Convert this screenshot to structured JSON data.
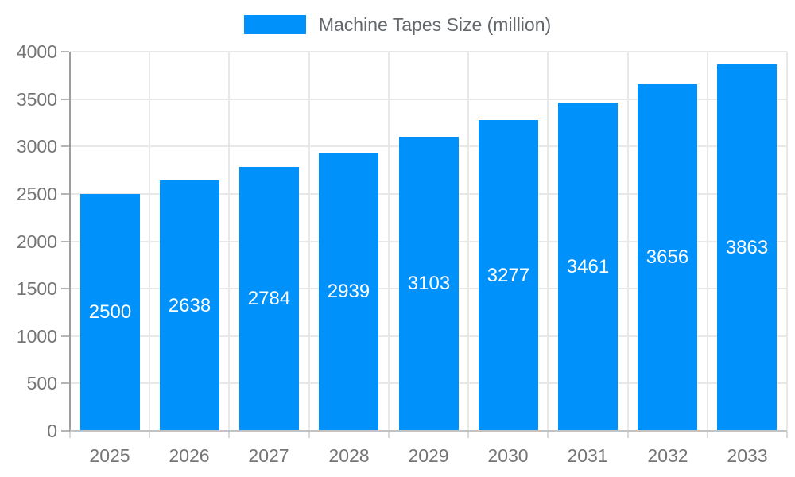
{
  "chart_data": {
    "type": "bar",
    "title": "Machine Tapes Size (million)",
    "legend_label": "Machine Tapes Size (million)",
    "legend_position": "top-center",
    "categories": [
      "2025",
      "2026",
      "2027",
      "2028",
      "2029",
      "2030",
      "2031",
      "2032",
      "2033"
    ],
    "series": [
      {
        "name": "Machine Tapes Size (million)",
        "values": [
          2500,
          2638,
          2784,
          2939,
          3103,
          3277,
          3461,
          3656,
          3863
        ]
      }
    ],
    "data_labels_visible": true,
    "data_label_position": "inside-center",
    "xlabel": "",
    "ylabel": "",
    "ylim": [
      0,
      4000
    ],
    "ytick_step": 500,
    "ytick_labels": [
      "0",
      "500",
      "1000",
      "1500",
      "2000",
      "2500",
      "3000",
      "3500",
      "4000"
    ],
    "grid": "on",
    "colors": {
      "bar": "#0191fb",
      "grid": "#e8e8e8",
      "axis_y_line": "#9e9e9e",
      "axis_x_line": "#c2c2c2",
      "tick_text": "#757575",
      "legend_text": "#63686d",
      "data_label_text": "#ffffff",
      "background": "#ffffff"
    }
  },
  "layout_note": "single bar chart, legend centered above plot"
}
